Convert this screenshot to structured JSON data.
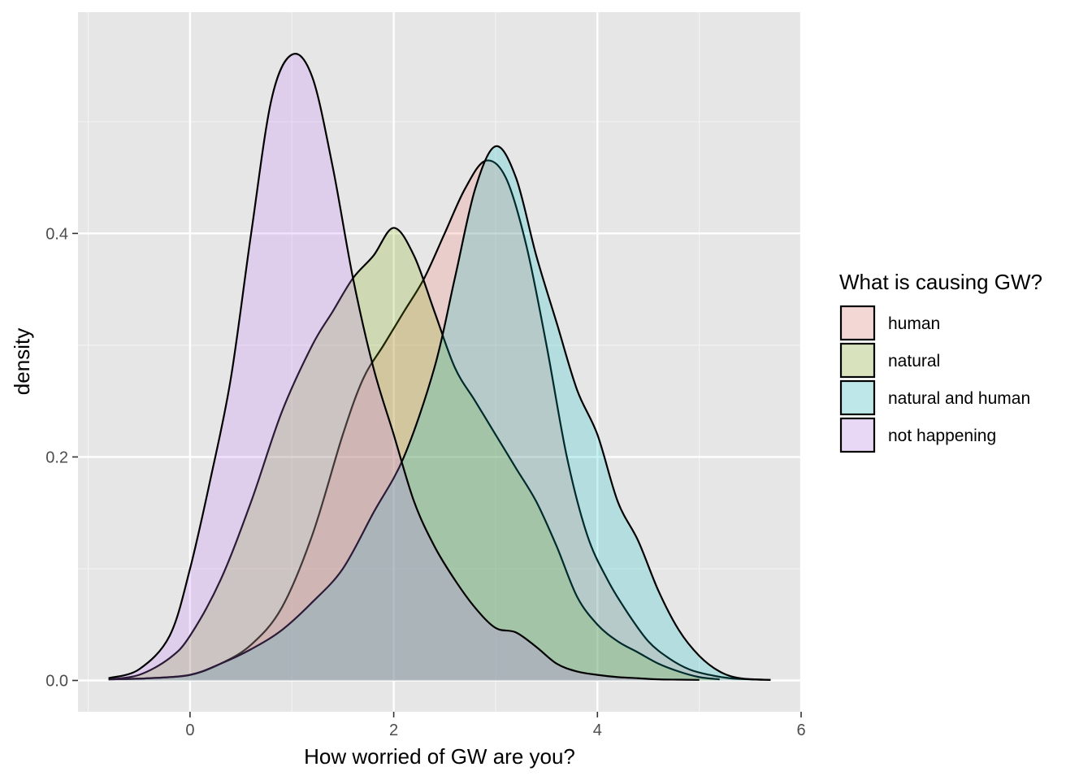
{
  "chart_data": {
    "type": "area",
    "subtype": "density",
    "title": "",
    "xlabel": "How worried of GW are you?",
    "ylabel": "density",
    "xlim": [
      -1.1,
      6.0
    ],
    "ylim": [
      -0.028,
      0.598
    ],
    "x_ticks": [
      0,
      2,
      4,
      6
    ],
    "x_tick_labels": [
      "0",
      "2",
      "4",
      "6"
    ],
    "y_ticks": [
      0.0,
      0.2,
      0.4
    ],
    "y_tick_labels": [
      "0.0",
      "0.2",
      "0.4"
    ],
    "grid": true,
    "legend": {
      "title": "What is causing GW?",
      "position": "right"
    },
    "series": [
      {
        "name": "human",
        "fill": "#F8766D",
        "x": [
          -0.8,
          -0.4,
          0.0,
          0.3,
          0.6,
          0.9,
          1.2,
          1.5,
          1.7,
          1.9,
          2.1,
          2.3,
          2.5,
          2.7,
          2.9,
          3.1,
          3.3,
          3.5,
          3.7,
          3.9,
          4.1,
          4.3,
          4.5,
          4.7,
          4.9,
          5.1,
          5.3,
          5.5,
          5.7
        ],
        "y": [
          0.001,
          0.002,
          0.005,
          0.015,
          0.032,
          0.065,
          0.13,
          0.22,
          0.27,
          0.3,
          0.33,
          0.36,
          0.4,
          0.44,
          0.465,
          0.45,
          0.39,
          0.3,
          0.2,
          0.13,
          0.09,
          0.06,
          0.035,
          0.02,
          0.01,
          0.005,
          0.002,
          0.001,
          0.0005
        ]
      },
      {
        "name": "natural",
        "fill": "#7CAE00",
        "x": [
          -0.8,
          -0.5,
          -0.2,
          0.0,
          0.3,
          0.6,
          0.9,
          1.2,
          1.4,
          1.6,
          1.8,
          2.0,
          2.2,
          2.4,
          2.6,
          2.8,
          3.0,
          3.2,
          3.4,
          3.6,
          3.8,
          4.0,
          4.2,
          4.4,
          4.6,
          4.8,
          5.0,
          5.2
        ],
        "y": [
          0.001,
          0.005,
          0.02,
          0.04,
          0.09,
          0.16,
          0.24,
          0.3,
          0.33,
          0.36,
          0.38,
          0.405,
          0.38,
          0.33,
          0.28,
          0.25,
          0.22,
          0.19,
          0.16,
          0.12,
          0.075,
          0.05,
          0.035,
          0.025,
          0.015,
          0.008,
          0.003,
          0.001
        ]
      },
      {
        "name": "natural and human",
        "fill": "#00BFC4",
        "x": [
          -0.8,
          -0.4,
          0.0,
          0.3,
          0.6,
          0.9,
          1.2,
          1.5,
          1.8,
          2.1,
          2.4,
          2.6,
          2.8,
          3.0,
          3.2,
          3.4,
          3.6,
          3.8,
          4.0,
          4.2,
          4.4,
          4.6,
          4.8,
          5.0,
          5.2,
          5.4,
          5.7
        ],
        "y": [
          0.001,
          0.002,
          0.005,
          0.015,
          0.028,
          0.045,
          0.07,
          0.1,
          0.15,
          0.2,
          0.28,
          0.36,
          0.44,
          0.478,
          0.45,
          0.38,
          0.32,
          0.26,
          0.22,
          0.16,
          0.125,
          0.08,
          0.045,
          0.022,
          0.008,
          0.002,
          0.0005
        ]
      },
      {
        "name": "not happening",
        "fill": "#C77CFF",
        "x": [
          -0.8,
          -0.5,
          -0.2,
          0.0,
          0.2,
          0.4,
          0.6,
          0.8,
          1.0,
          1.2,
          1.4,
          1.6,
          1.8,
          2.0,
          2.2,
          2.4,
          2.6,
          2.8,
          3.0,
          3.2,
          3.4,
          3.6,
          3.8,
          4.0,
          4.2,
          4.4,
          4.6,
          4.8,
          5.0
        ],
        "y": [
          0.002,
          0.01,
          0.04,
          0.1,
          0.18,
          0.27,
          0.4,
          0.52,
          0.56,
          0.54,
          0.46,
          0.36,
          0.28,
          0.22,
          0.16,
          0.12,
          0.09,
          0.065,
          0.047,
          0.043,
          0.03,
          0.015,
          0.008,
          0.005,
          0.003,
          0.002,
          0.001,
          0.0007,
          0.0005
        ]
      }
    ]
  }
}
